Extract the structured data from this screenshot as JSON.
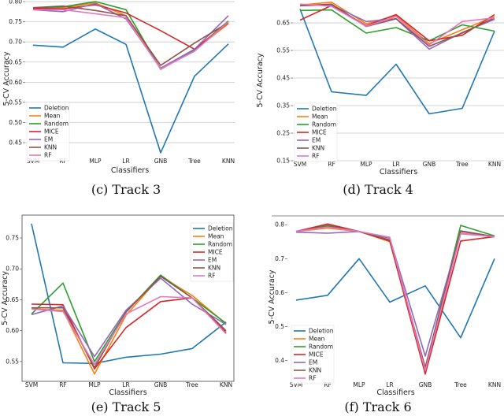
{
  "colors": {
    "Deletion": "#1f77b4",
    "Mean": "#ff7f0e",
    "Random": "#2ca02c",
    "MICE": "#d62728",
    "EM": "#9467bd",
    "KNN": "#8c564b",
    "RF": "#e377c2"
  },
  "chart_data": [
    {
      "type": "line",
      "caption": "(c) Track 3",
      "xlabel": "Classifiers",
      "ylabel": "5-CV Accuracy",
      "categories": [
        "SVM",
        "RF",
        "MLP",
        "LR",
        "GNB",
        "Tree",
        "KNN"
      ],
      "yticks": [
        0.45,
        0.5,
        0.55,
        0.6,
        0.65,
        0.7,
        0.75,
        0.8
      ],
      "tick_decimals": 2,
      "ylim": [
        0.413,
        0.804
      ],
      "grid": true,
      "legend": "lower-left",
      "series": [
        {
          "name": "Deletion",
          "values": [
            0.692,
            0.687,
            0.732,
            0.694,
            0.425,
            0.615,
            0.695
          ]
        },
        {
          "name": "Mean",
          "values": [
            0.783,
            0.785,
            0.797,
            0.765,
            0.635,
            0.68,
            0.745
          ]
        },
        {
          "name": "Random",
          "values": [
            0.783,
            0.787,
            0.8,
            0.78,
            0.632,
            0.68,
            0.752
          ]
        },
        {
          "name": "MICE",
          "values": [
            0.783,
            0.782,
            0.792,
            0.772,
            0.728,
            0.682,
            0.748
          ]
        },
        {
          "name": "EM",
          "values": [
            0.78,
            0.775,
            0.795,
            0.757,
            0.635,
            0.682,
            0.765
          ]
        },
        {
          "name": "KNN",
          "values": [
            0.785,
            0.789,
            0.778,
            0.765,
            0.642,
            0.697,
            0.748
          ]
        },
        {
          "name": "RF",
          "values": [
            0.78,
            0.78,
            0.77,
            0.76,
            0.633,
            0.677,
            0.75
          ]
        }
      ]
    },
    {
      "type": "line",
      "caption": "(d) Track 4",
      "xlabel": "Classifiers",
      "ylabel": "5-CV Accuracy",
      "categories": [
        "SVM",
        "RF",
        "MLP",
        "LR",
        "GNB",
        "Tree",
        "KNN"
      ],
      "yticks": [
        0.15,
        0.25,
        0.35,
        0.45,
        0.55,
        0.65
      ],
      "tick_decimals": 2,
      "ylim": [
        0.15,
        0.733
      ],
      "grid": true,
      "legend": "lower-left",
      "series": [
        {
          "name": "Deletion",
          "values": [
            0.7,
            0.4,
            0.387,
            0.5,
            0.32,
            0.34,
            0.62
          ]
        },
        {
          "name": "Mean",
          "values": [
            0.715,
            0.725,
            0.647,
            0.677,
            0.575,
            0.625,
            0.673
          ]
        },
        {
          "name": "Random",
          "values": [
            0.695,
            0.697,
            0.613,
            0.633,
            0.585,
            0.643,
            0.62
          ]
        },
        {
          "name": "MICE",
          "values": [
            0.66,
            0.713,
            0.64,
            0.68,
            0.585,
            0.605,
            0.68
          ]
        },
        {
          "name": "EM",
          "values": [
            0.712,
            0.715,
            0.655,
            0.665,
            0.555,
            0.615,
            0.663
          ]
        },
        {
          "name": "KNN",
          "values": [
            0.712,
            0.718,
            0.637,
            0.665,
            0.565,
            0.613,
            0.668
          ]
        },
        {
          "name": "RF",
          "values": [
            0.718,
            0.71,
            0.638,
            0.673,
            0.57,
            0.655,
            0.668
          ]
        }
      ]
    },
    {
      "type": "line",
      "caption": "(e) Track 5",
      "xlabel": "Classifiers",
      "ylabel": "5-CV Accuracy",
      "categories": [
        "SVM",
        "RF",
        "MLP",
        "LR",
        "GNB",
        "Tree",
        "KNN"
      ],
      "yticks": [
        0.55,
        0.6,
        0.65,
        0.7,
        0.75
      ],
      "tick_decimals": 2,
      "ylim": [
        0.518,
        0.787
      ],
      "grid": false,
      "legend": "upper-right",
      "series": [
        {
          "name": "Deletion",
          "values": [
            0.773,
            0.548,
            0.547,
            0.557,
            0.562,
            0.571,
            0.614
          ]
        },
        {
          "name": "Mean",
          "values": [
            0.635,
            0.633,
            0.53,
            0.625,
            0.688,
            0.657,
            0.611
          ]
        },
        {
          "name": "Random",
          "values": [
            0.627,
            0.677,
            0.55,
            0.63,
            0.69,
            0.653,
            0.612
          ]
        },
        {
          "name": "MICE",
          "values": [
            0.643,
            0.642,
            0.538,
            0.605,
            0.647,
            0.653,
            0.597
          ]
        },
        {
          "name": "EM",
          "values": [
            0.626,
            0.64,
            0.558,
            0.633,
            0.685,
            0.643,
            0.61
          ]
        },
        {
          "name": "KNN",
          "values": [
            0.637,
            0.637,
            0.54,
            0.63,
            0.688,
            0.653,
            0.6
          ]
        },
        {
          "name": "RF",
          "values": [
            0.635,
            0.631,
            0.545,
            0.627,
            0.655,
            0.653,
            0.595
          ]
        }
      ]
    },
    {
      "type": "line",
      "caption": "(f) Track 6",
      "xlabel": "Classifiers",
      "ylabel": "5-CV Accuracy",
      "categories": [
        "SVM",
        "RF",
        "MLP",
        "LR",
        "GNB",
        "Tree",
        "KNN"
      ],
      "yticks": [
        0.4,
        0.5,
        0.6,
        0.7,
        0.8
      ],
      "tick_decimals": 1,
      "ylim": [
        0.348,
        0.826
      ],
      "grid": false,
      "legend": "lower-left",
      "series": [
        {
          "name": "Deletion",
          "values": [
            0.578,
            0.592,
            0.7,
            0.572,
            0.62,
            0.467,
            0.7
          ]
        },
        {
          "name": "Mean",
          "values": [
            0.78,
            0.79,
            0.78,
            0.75,
            0.365,
            0.775,
            0.765
          ]
        },
        {
          "name": "Random",
          "values": [
            0.78,
            0.798,
            0.78,
            0.755,
            0.375,
            0.798,
            0.767
          ]
        },
        {
          "name": "MICE",
          "values": [
            0.78,
            0.802,
            0.78,
            0.752,
            0.36,
            0.752,
            0.765
          ]
        },
        {
          "name": "EM",
          "values": [
            0.778,
            0.775,
            0.78,
            0.76,
            0.413,
            0.78,
            0.765
          ]
        },
        {
          "name": "KNN",
          "values": [
            0.78,
            0.795,
            0.78,
            0.755,
            0.38,
            0.782,
            0.765
          ]
        },
        {
          "name": "RF",
          "values": [
            0.78,
            0.793,
            0.78,
            0.763,
            0.37,
            0.773,
            0.765
          ]
        }
      ]
    }
  ]
}
